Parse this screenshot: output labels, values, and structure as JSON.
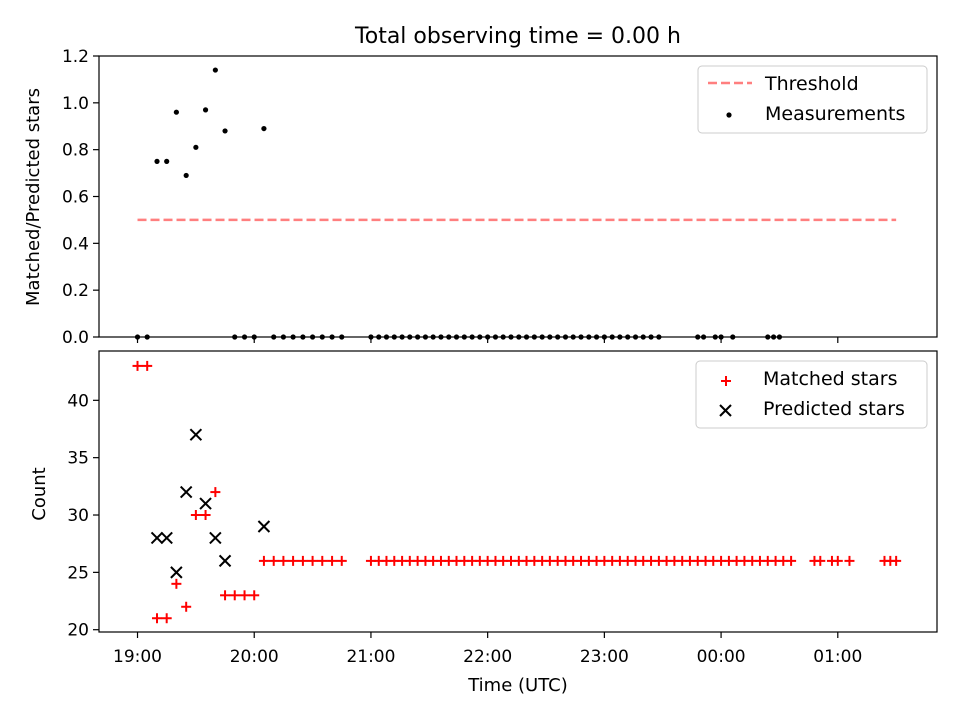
{
  "title": "Total observing time = 0.00 h",
  "chart_data": [
    {
      "type": "scatter",
      "ylabel": "Matched/Predicted stars",
      "ylim": [
        0,
        1.2
      ],
      "yticks": [
        "0.0",
        "0.2",
        "0.4",
        "0.6",
        "0.8",
        "1.0",
        "1.2"
      ],
      "legend_position": "top-right",
      "threshold": {
        "name": "Threshold",
        "value": 0.5,
        "x_start": 0.0,
        "x_end": 6.5,
        "color": "#ff7f7f"
      },
      "measurements": {
        "name": "Measurements",
        "color": "#000000",
        "x": [
          0.0,
          0.083,
          0.167,
          0.25,
          0.333,
          0.417,
          0.5,
          0.583,
          0.667,
          0.75,
          0.833,
          0.917,
          1.0,
          1.083,
          1.167,
          1.25,
          1.333,
          1.417,
          1.5,
          1.583,
          1.667,
          1.75,
          2.0,
          2.067,
          2.133,
          2.2,
          2.267,
          2.333,
          2.4,
          2.467,
          2.533,
          2.6,
          2.667,
          2.733,
          2.8,
          2.867,
          2.933,
          3.0,
          3.067,
          3.133,
          3.2,
          3.267,
          3.333,
          3.4,
          3.467,
          3.533,
          3.6,
          3.667,
          3.733,
          3.8,
          3.867,
          3.933,
          4.0,
          4.067,
          4.133,
          4.2,
          4.267,
          4.333,
          4.4,
          4.467,
          4.8,
          4.85,
          4.95,
          5.0,
          5.1,
          5.4,
          5.45,
          5.5
        ],
        "y": [
          0,
          0,
          0.75,
          0.75,
          0.96,
          0.69,
          0.81,
          0.97,
          1.14,
          0.88,
          0,
          0,
          0,
          0.89,
          0,
          0,
          0,
          0,
          0,
          0,
          0,
          0,
          0,
          0,
          0,
          0,
          0,
          0,
          0,
          0,
          0,
          0,
          0,
          0,
          0,
          0,
          0,
          0,
          0,
          0,
          0,
          0,
          0,
          0,
          0,
          0,
          0,
          0,
          0,
          0,
          0,
          0,
          0,
          0,
          0,
          0,
          0,
          0,
          0,
          0,
          0,
          0,
          0,
          0,
          0,
          0,
          0,
          0
        ]
      }
    },
    {
      "type": "scatter",
      "xlabel": "Time (UTC)",
      "ylabel": "Count",
      "ylim": [
        19.8,
        44.3
      ],
      "yticks": [
        20,
        25,
        30,
        35,
        40
      ],
      "xlim": [
        -0.33,
        6.85
      ],
      "xticks": [
        {
          "x": 0,
          "label": "19:00"
        },
        {
          "x": 1,
          "label": "20:00"
        },
        {
          "x": 2,
          "label": "21:00"
        },
        {
          "x": 3,
          "label": "22:00"
        },
        {
          "x": 4,
          "label": "23:00"
        },
        {
          "x": 5,
          "label": "00:00"
        },
        {
          "x": 6,
          "label": "01:00"
        }
      ],
      "legend_position": "top-right",
      "matched": {
        "name": "Matched stars",
        "color": "#ff0000",
        "x": [
          0.0,
          0.083,
          0.167,
          0.25,
          0.333,
          0.417,
          0.5,
          0.583,
          0.667,
          0.75,
          0.833,
          0.917,
          1.0,
          1.083,
          1.167,
          1.25,
          1.333,
          1.417,
          1.5,
          1.583,
          1.667,
          1.75,
          2.0,
          2.067,
          2.133,
          2.2,
          2.267,
          2.333,
          2.4,
          2.467,
          2.533,
          2.6,
          2.667,
          2.733,
          2.8,
          2.867,
          2.933,
          3.0,
          3.067,
          3.133,
          3.2,
          3.267,
          3.333,
          3.4,
          3.467,
          3.533,
          3.6,
          3.667,
          3.733,
          3.8,
          3.867,
          3.933,
          4.0,
          4.067,
          4.133,
          4.2,
          4.267,
          4.333,
          4.4,
          4.467,
          4.533,
          4.6,
          4.667,
          4.733,
          4.8,
          4.867,
          4.933,
          5.0,
          5.067,
          5.133,
          5.2,
          5.267,
          5.333,
          5.4,
          5.467,
          5.533,
          5.6,
          5.8,
          5.85,
          5.95,
          6.0,
          6.1,
          6.4,
          6.45,
          6.5
        ],
        "y": [
          43,
          43,
          21,
          21,
          24,
          22,
          30,
          30,
          32,
          23,
          23,
          23,
          23,
          26,
          26,
          26,
          26,
          26,
          26,
          26,
          26,
          26,
          26,
          26,
          26,
          26,
          26,
          26,
          26,
          26,
          26,
          26,
          26,
          26,
          26,
          26,
          26,
          26,
          26,
          26,
          26,
          26,
          26,
          26,
          26,
          26,
          26,
          26,
          26,
          26,
          26,
          26,
          26,
          26,
          26,
          26,
          26,
          26,
          26,
          26,
          26,
          26,
          26,
          26,
          26,
          26,
          26,
          26,
          26,
          26,
          26,
          26,
          26,
          26,
          26,
          26,
          26,
          26,
          26,
          26,
          26,
          26,
          26,
          26,
          26
        ]
      },
      "predicted": {
        "name": "Predicted stars",
        "color": "#000000",
        "x": [
          0.167,
          0.25,
          0.333,
          0.417,
          0.5,
          0.583,
          0.667,
          0.75,
          1.083
        ],
        "y": [
          28,
          28,
          25,
          32,
          37,
          31,
          28,
          26,
          29
        ]
      }
    }
  ]
}
